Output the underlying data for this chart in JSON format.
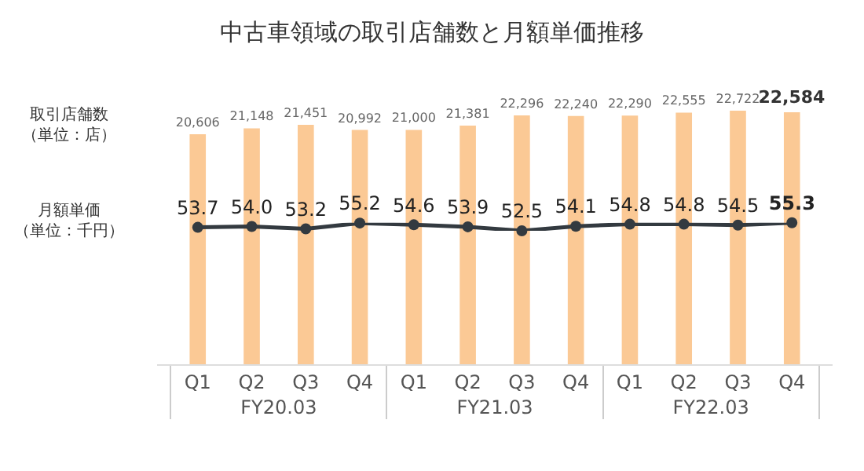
{
  "chart_data": {
    "type": "bar",
    "title": "中古車領域の取引店舗数と月額単価推移",
    "ylabel": "取引店舗数（単位：店）",
    "y2label": "月額単価（単位：千円）",
    "categories": [
      "Q1",
      "Q2",
      "Q3",
      "Q4",
      "Q1",
      "Q2",
      "Q3",
      "Q4",
      "Q1",
      "Q2",
      "Q3",
      "Q4"
    ],
    "annotations": [
      "FY20.03",
      "FY21.03",
      "FY22.03"
    ],
    "series": [
      {
        "color": "#fbc995",
        "values": [
          20606,
          21148,
          21451,
          20992,
          21000,
          21381,
          22296,
          22240,
          22290,
          22555,
          22722,
          22584
        ],
        "value_labels": [
          "20,606",
          "21,148",
          "21,451",
          "20,992",
          "21,000",
          "21,381",
          "22,296",
          "22,240",
          "22,290",
          "22,555",
          "22,722",
          "22,584"
        ]
      },
      {
        "type": "line",
        "axis": "y2",
        "color": "#333a40",
        "values": [
          53.7,
          54.0,
          53.2,
          55.2,
          54.6,
          53.9,
          52.5,
          54.1,
          54.8,
          54.8,
          54.5,
          55.3
        ],
        "value_labels": [
          "53.7",
          "54.0",
          "53.2",
          "55.2",
          "54.6",
          "53.9",
          "52.5",
          "54.1",
          "54.8",
          "54.8",
          "54.5",
          "55.3"
        ]
      }
    ],
    "grid": false,
    "marker": "circle",
    "line_style": "solid",
    "tick_labels": "x"
  }
}
